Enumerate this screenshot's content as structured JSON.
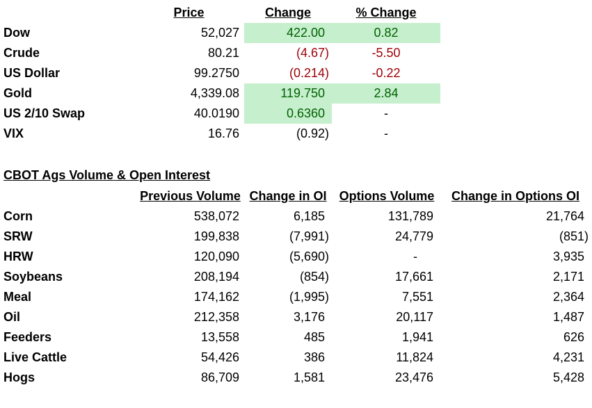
{
  "markets": {
    "headers": {
      "price": "Price",
      "change": "Change ",
      "pct_change": "% Change"
    },
    "rows": [
      {
        "name": "Dow",
        "price": "52,027",
        "change": "422.00",
        "pct": "0.82"
      },
      {
        "name": "Crude",
        "price": "80.21",
        "change": "(4.67)",
        "pct": "-5.50"
      },
      {
        "name": "US Dollar",
        "price": "99.2750",
        "change": "(0.214)",
        "pct": "-0.22"
      },
      {
        "name": "Gold",
        "price": "4,339.08",
        "change": "119.750",
        "pct": "2.84"
      },
      {
        "name": "US 2/10 Swap",
        "price": "40.0190",
        "change": "0.6360",
        "pct": "-"
      },
      {
        "name": "VIX",
        "price": "16.76",
        "change": "(0.92)",
        "pct": "-"
      }
    ],
    "colors": {
      "positive_fill": "#c6efce",
      "positive_text": "#006100",
      "negative_text": "#9c0006"
    }
  },
  "cbot": {
    "title": "CBOT Ags Volume & Open Interest",
    "headers": {
      "prev_volume": "Previous Volume",
      "change_oi": "Change in OI",
      "options_volume": "Options Volume",
      "change_options_oi": "Change in Options OI"
    },
    "rows": [
      {
        "name": "Corn",
        "volume": "538,072",
        "oi": "6,185",
        "opt_vol": "131,789",
        "opt_oi": "21,764"
      },
      {
        "name": "SRW",
        "volume": "199,838",
        "oi": "(7,991)",
        "opt_vol": "24,779",
        "opt_oi": "(851)"
      },
      {
        "name": "HRW",
        "volume": "120,090",
        "oi": "(5,690)",
        "opt_vol": "-",
        "opt_oi": "3,935"
      },
      {
        "name": "Soybeans",
        "volume": "208,194",
        "oi": "(854)",
        "opt_vol": "17,661",
        "opt_oi": "2,171"
      },
      {
        "name": "Meal",
        "volume": "174,162",
        "oi": "(1,995)",
        "opt_vol": "7,551",
        "opt_oi": "2,364"
      },
      {
        "name": "Oil",
        "volume": "212,358",
        "oi": "3,176",
        "opt_vol": "20,117",
        "opt_oi": "1,487"
      },
      {
        "name": "Feeders",
        "volume": "13,558",
        "oi": "485",
        "opt_vol": "1,941",
        "opt_oi": "626"
      },
      {
        "name": "Live Cattle",
        "volume": "54,426",
        "oi": "386",
        "opt_vol": "11,824",
        "opt_oi": "4,231"
      },
      {
        "name": "Hogs",
        "volume": "86,709",
        "oi": "1,581",
        "opt_vol": "23,476",
        "opt_oi": "5,428"
      }
    ]
  }
}
